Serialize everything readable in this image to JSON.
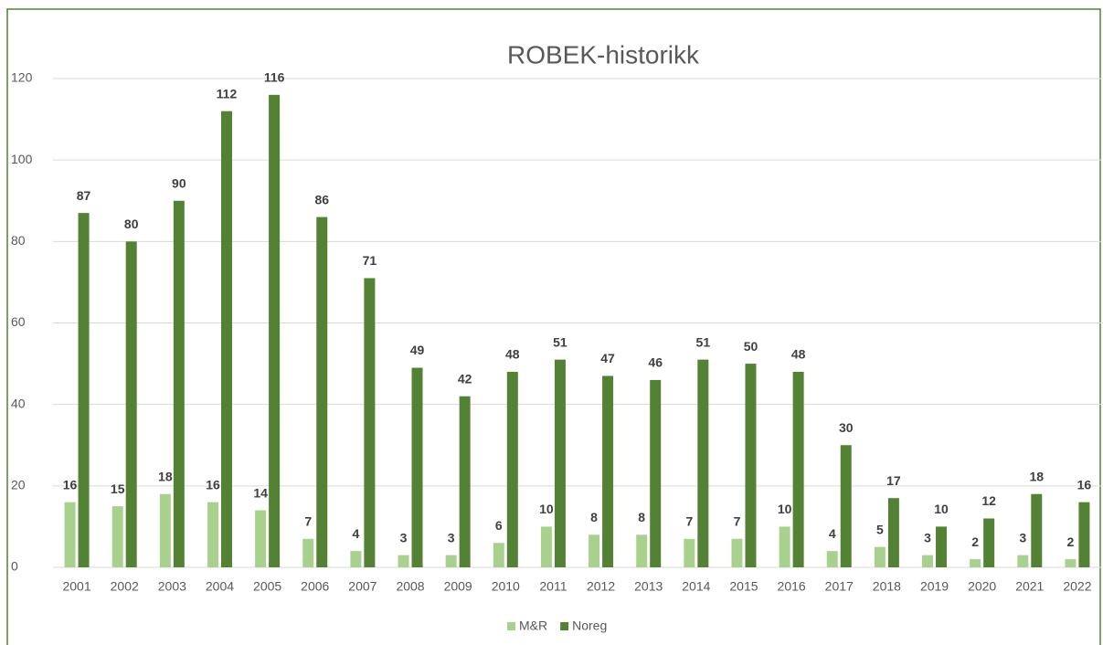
{
  "chart_data": {
    "type": "bar",
    "title": "ROBEK-historikk",
    "categories": [
      "2001",
      "2002",
      "2003",
      "2004",
      "2005",
      "2006",
      "2007",
      "2008",
      "2009",
      "2010",
      "2011",
      "2012",
      "2013",
      "2014",
      "2015",
      "2016",
      "2017",
      "2018",
      "2019",
      "2020",
      "2021",
      "2022"
    ],
    "series": [
      {
        "name": "M&R",
        "color": "#a9d18e",
        "values": [
          16,
          15,
          18,
          16,
          14,
          7,
          4,
          3,
          3,
          6,
          10,
          8,
          8,
          7,
          7,
          10,
          4,
          5,
          3,
          2,
          3,
          2
        ]
      },
      {
        "name": "Noreg",
        "color": "#548235",
        "values": [
          87,
          80,
          90,
          112,
          116,
          86,
          71,
          49,
          42,
          48,
          51,
          47,
          46,
          51,
          50,
          48,
          30,
          17,
          10,
          12,
          18,
          16
        ]
      }
    ],
    "ylim": [
      0,
      120
    ],
    "yticks": [
      0,
      20,
      40,
      60,
      80,
      100,
      120
    ],
    "grid": true,
    "legend": "bottom"
  }
}
